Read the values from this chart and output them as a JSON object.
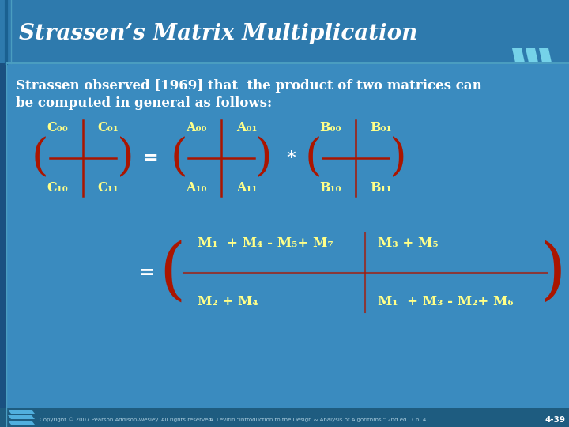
{
  "title": "Strassen’s Matrix Multiplication",
  "bg_color": "#3a8bbf",
  "title_bg_color": "#2e7aad",
  "title_color": "#ffffff",
  "text_color": "#ffffff",
  "yellow_color": "#ffff88",
  "bracket_color": "#aa1500",
  "intro_text1": "Strassen observed [1969] that  the product of two matrices can",
  "intro_text2": "be computed in general as follows:",
  "footer_copyright": "Copyright © 2007 Pearson Addison-Wesley. All rights reserved.",
  "footer_ref": "A. Levitin \"Introduction to the Design & Analysis of Algorithms,\" 2nd ed., Ch. 4",
  "footer_page": "4-39"
}
